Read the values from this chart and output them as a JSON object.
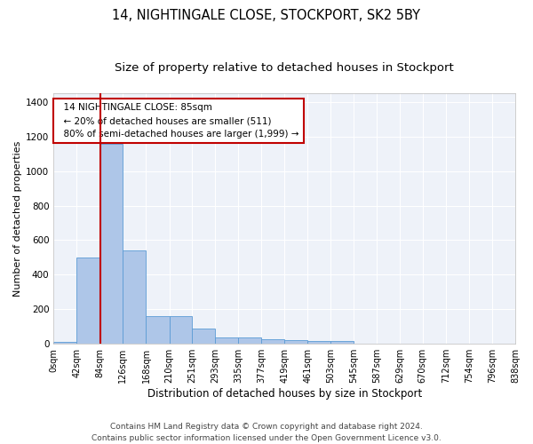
{
  "title": "14, NIGHTINGALE CLOSE, STOCKPORT, SK2 5BY",
  "subtitle": "Size of property relative to detached houses in Stockport",
  "xlabel": "Distribution of detached houses by size in Stockport",
  "ylabel": "Number of detached properties",
  "bar_values": [
    10,
    500,
    1155,
    540,
    160,
    160,
    90,
    35,
    35,
    25,
    20,
    15,
    15,
    0,
    0,
    0,
    0,
    0,
    0,
    0
  ],
  "bar_edges": [
    0,
    42,
    84,
    126,
    168,
    210,
    251,
    293,
    335,
    377,
    419,
    461,
    503,
    545,
    587,
    629,
    670,
    712,
    754,
    796,
    838
  ],
  "tick_labels": [
    "0sqm",
    "42sqm",
    "84sqm",
    "126sqm",
    "168sqm",
    "210sqm",
    "251sqm",
    "293sqm",
    "335sqm",
    "377sqm",
    "419sqm",
    "461sqm",
    "503sqm",
    "545sqm",
    "587sqm",
    "629sqm",
    "670sqm",
    "712sqm",
    "754sqm",
    "796sqm",
    "838sqm"
  ],
  "bar_color": "#aec6e8",
  "bar_edge_color": "#5b9bd5",
  "property_line_x": 85,
  "property_line_color": "#c00000",
  "annotation_text": "  14 NIGHTINGALE CLOSE: 85sqm\n  ← 20% of detached houses are smaller (511)\n  80% of semi-detached houses are larger (1,999) →",
  "annotation_box_color": "#c00000",
  "ylim": [
    0,
    1450
  ],
  "yticks": [
    0,
    200,
    400,
    600,
    800,
    1000,
    1200,
    1400
  ],
  "bg_color": "#eef2f9",
  "grid_color": "#ffffff",
  "footer_text": "Contains HM Land Registry data © Crown copyright and database right 2024.\nContains public sector information licensed under the Open Government Licence v3.0.",
  "title_fontsize": 10.5,
  "subtitle_fontsize": 9.5,
  "xlabel_fontsize": 8.5,
  "ylabel_fontsize": 8,
  "tick_fontsize": 7,
  "annotation_fontsize": 7.5,
  "footer_fontsize": 6.5
}
